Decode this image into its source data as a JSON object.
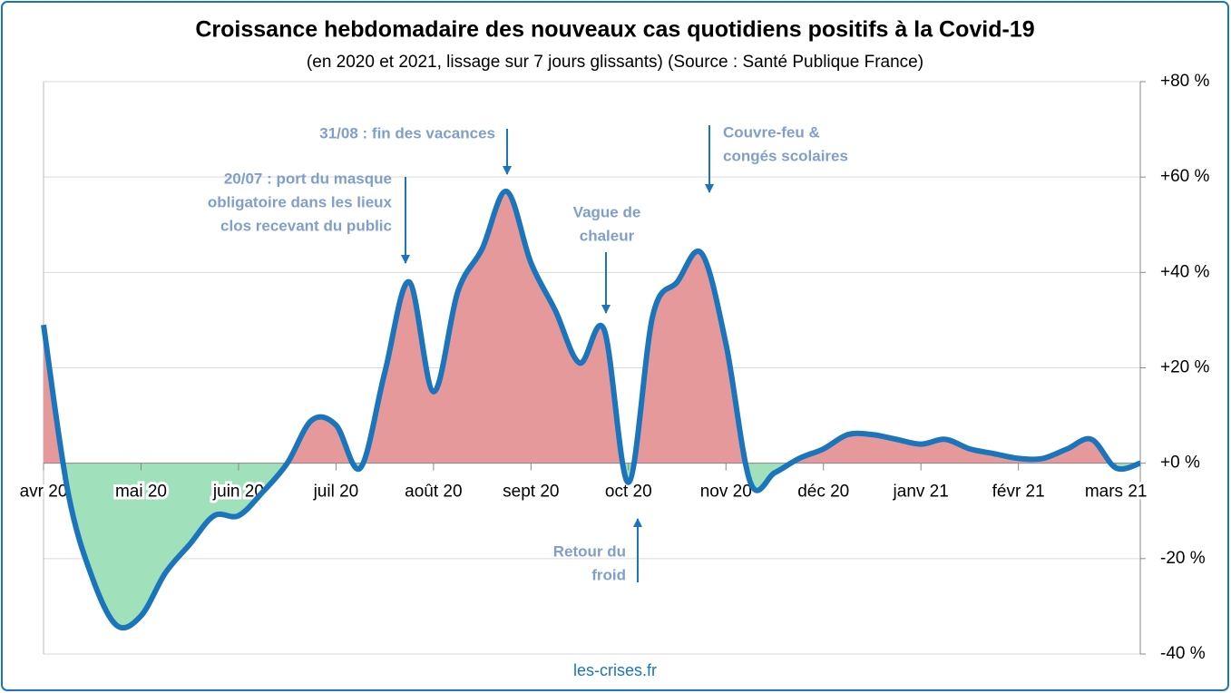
{
  "chart_data": {
    "type": "area-line",
    "title": "Croissance hebdomadaire des nouveaux cas quotidiens positifs à la Covid-19",
    "subtitle": "(en 2020 et 2021, lissage sur 7 jours glissants) (Source : Santé Publique France)",
    "source": "les-crises.fr",
    "categories": [
      "avr 20",
      null,
      null,
      null,
      "mai 20",
      null,
      null,
      null,
      "juin 20",
      null,
      null,
      null,
      "juil 20",
      null,
      null,
      null,
      "août 20",
      null,
      null,
      null,
      "sept 20",
      null,
      null,
      null,
      "oct 20",
      null,
      null,
      null,
      "nov 20",
      null,
      null,
      null,
      "déc 20",
      null,
      null,
      null,
      "janv 21",
      null,
      null,
      null,
      "févr 21",
      null,
      null,
      null,
      "mars 21",
      null
    ],
    "values": [
      29,
      -6,
      -24,
      -34,
      -32,
      -23,
      -17,
      -11,
      -11,
      -6,
      0,
      9,
      8,
      -1,
      19,
      38,
      15,
      36,
      45,
      57,
      42,
      32,
      21,
      28,
      -4,
      31,
      38,
      44,
      25,
      -4,
      -2,
      1,
      3,
      6,
      6,
      5,
      4,
      5,
      3,
      2,
      1,
      1,
      3,
      5,
      -1,
      0
    ],
    "line_color": "#1a75bc",
    "fill_positive": "#e6999a",
    "fill_negative": "#a0e0bb",
    "ylim": [
      -40,
      80
    ],
    "yticks": [
      {
        "value": -40,
        "label": "-40 %"
      },
      {
        "value": -20,
        "label": "-20 %"
      },
      {
        "value": 0,
        "label": "+0 %"
      },
      {
        "value": 20,
        "label": "+20 %"
      },
      {
        "value": 40,
        "label": "+40 %"
      },
      {
        "value": 60,
        "label": "+60 %"
      },
      {
        "value": 80,
        "label": "+80 %"
      }
    ],
    "negative_tick_color": "#e00000",
    "grid": true,
    "annotations": [
      {
        "lines": [
          "20/07 : port du masque",
          "obligatoire  dans les lieux",
          "clos recevant du public"
        ]
      },
      {
        "lines": [
          "31/08 : fin des vacances"
        ]
      },
      {
        "lines": [
          "Vague de",
          "chaleur"
        ]
      },
      {
        "lines": [
          "Couvre-feu &",
          "congés scolaires"
        ]
      },
      {
        "lines": [
          "Retour du",
          "froid"
        ]
      }
    ]
  }
}
